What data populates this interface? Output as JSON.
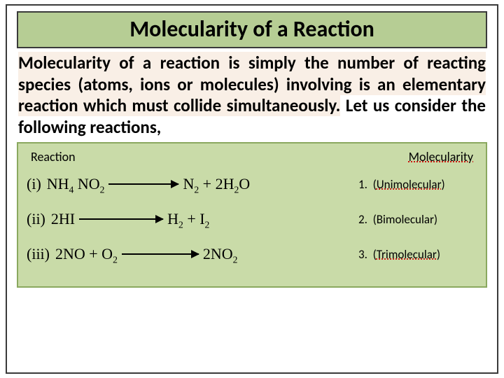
{
  "title": "Molecularity of a Reaction",
  "definition_highlighted": "Molecularity of a reaction is simply the number of reacting species (atoms, ions or molecules) involving is an elementary reaction which must collide simultaneously.",
  "definition_plain": " Let us consider the following reactions,",
  "table": {
    "header_left": "Reaction",
    "header_right": "Molecularity",
    "rows": [
      {
        "roman": "(i)",
        "lhs_html": "NH<sub>4</sub> NO<sub>2</sub>",
        "rhs_html": "N<sub>2</sub> + 2H<sub>2</sub>O",
        "arrow_w": 100,
        "num": "1.",
        "type_pre": "(",
        "type": "Unimolecular",
        "type_post": ")",
        "dot": true
      },
      {
        "roman": "(ii)",
        "lhs_html": "2HI",
        "rhs_html": "H<sub>2</sub> + I<sub>2</sub>",
        "arrow_w": 120,
        "num": "2.",
        "type_pre": "(",
        "type": "Bimolecular",
        "type_post": ")",
        "dot": false
      },
      {
        "roman": "(iii)",
        "lhs_html": "2NO + O<sub>2</sub>",
        "rhs_html": "2NO<sub>2</sub>",
        "arrow_w": 110,
        "num": "3.",
        "type_pre": "(",
        "type": "Trimolecular",
        "type_post": ")",
        "dot": true
      }
    ]
  },
  "colors": {
    "title_bg": "#b6cd94",
    "table_bg": "#c9dba8",
    "table_border": "#8aa85f",
    "highlight_bg": "#f9efe6",
    "frame": "#3a3a3a",
    "dotted": "#cc0000"
  },
  "typography": {
    "title_pt": 32,
    "body_pt": 25,
    "table_head_pt": 18,
    "rxn_pt": 22,
    "mcell_pt": 17
  }
}
